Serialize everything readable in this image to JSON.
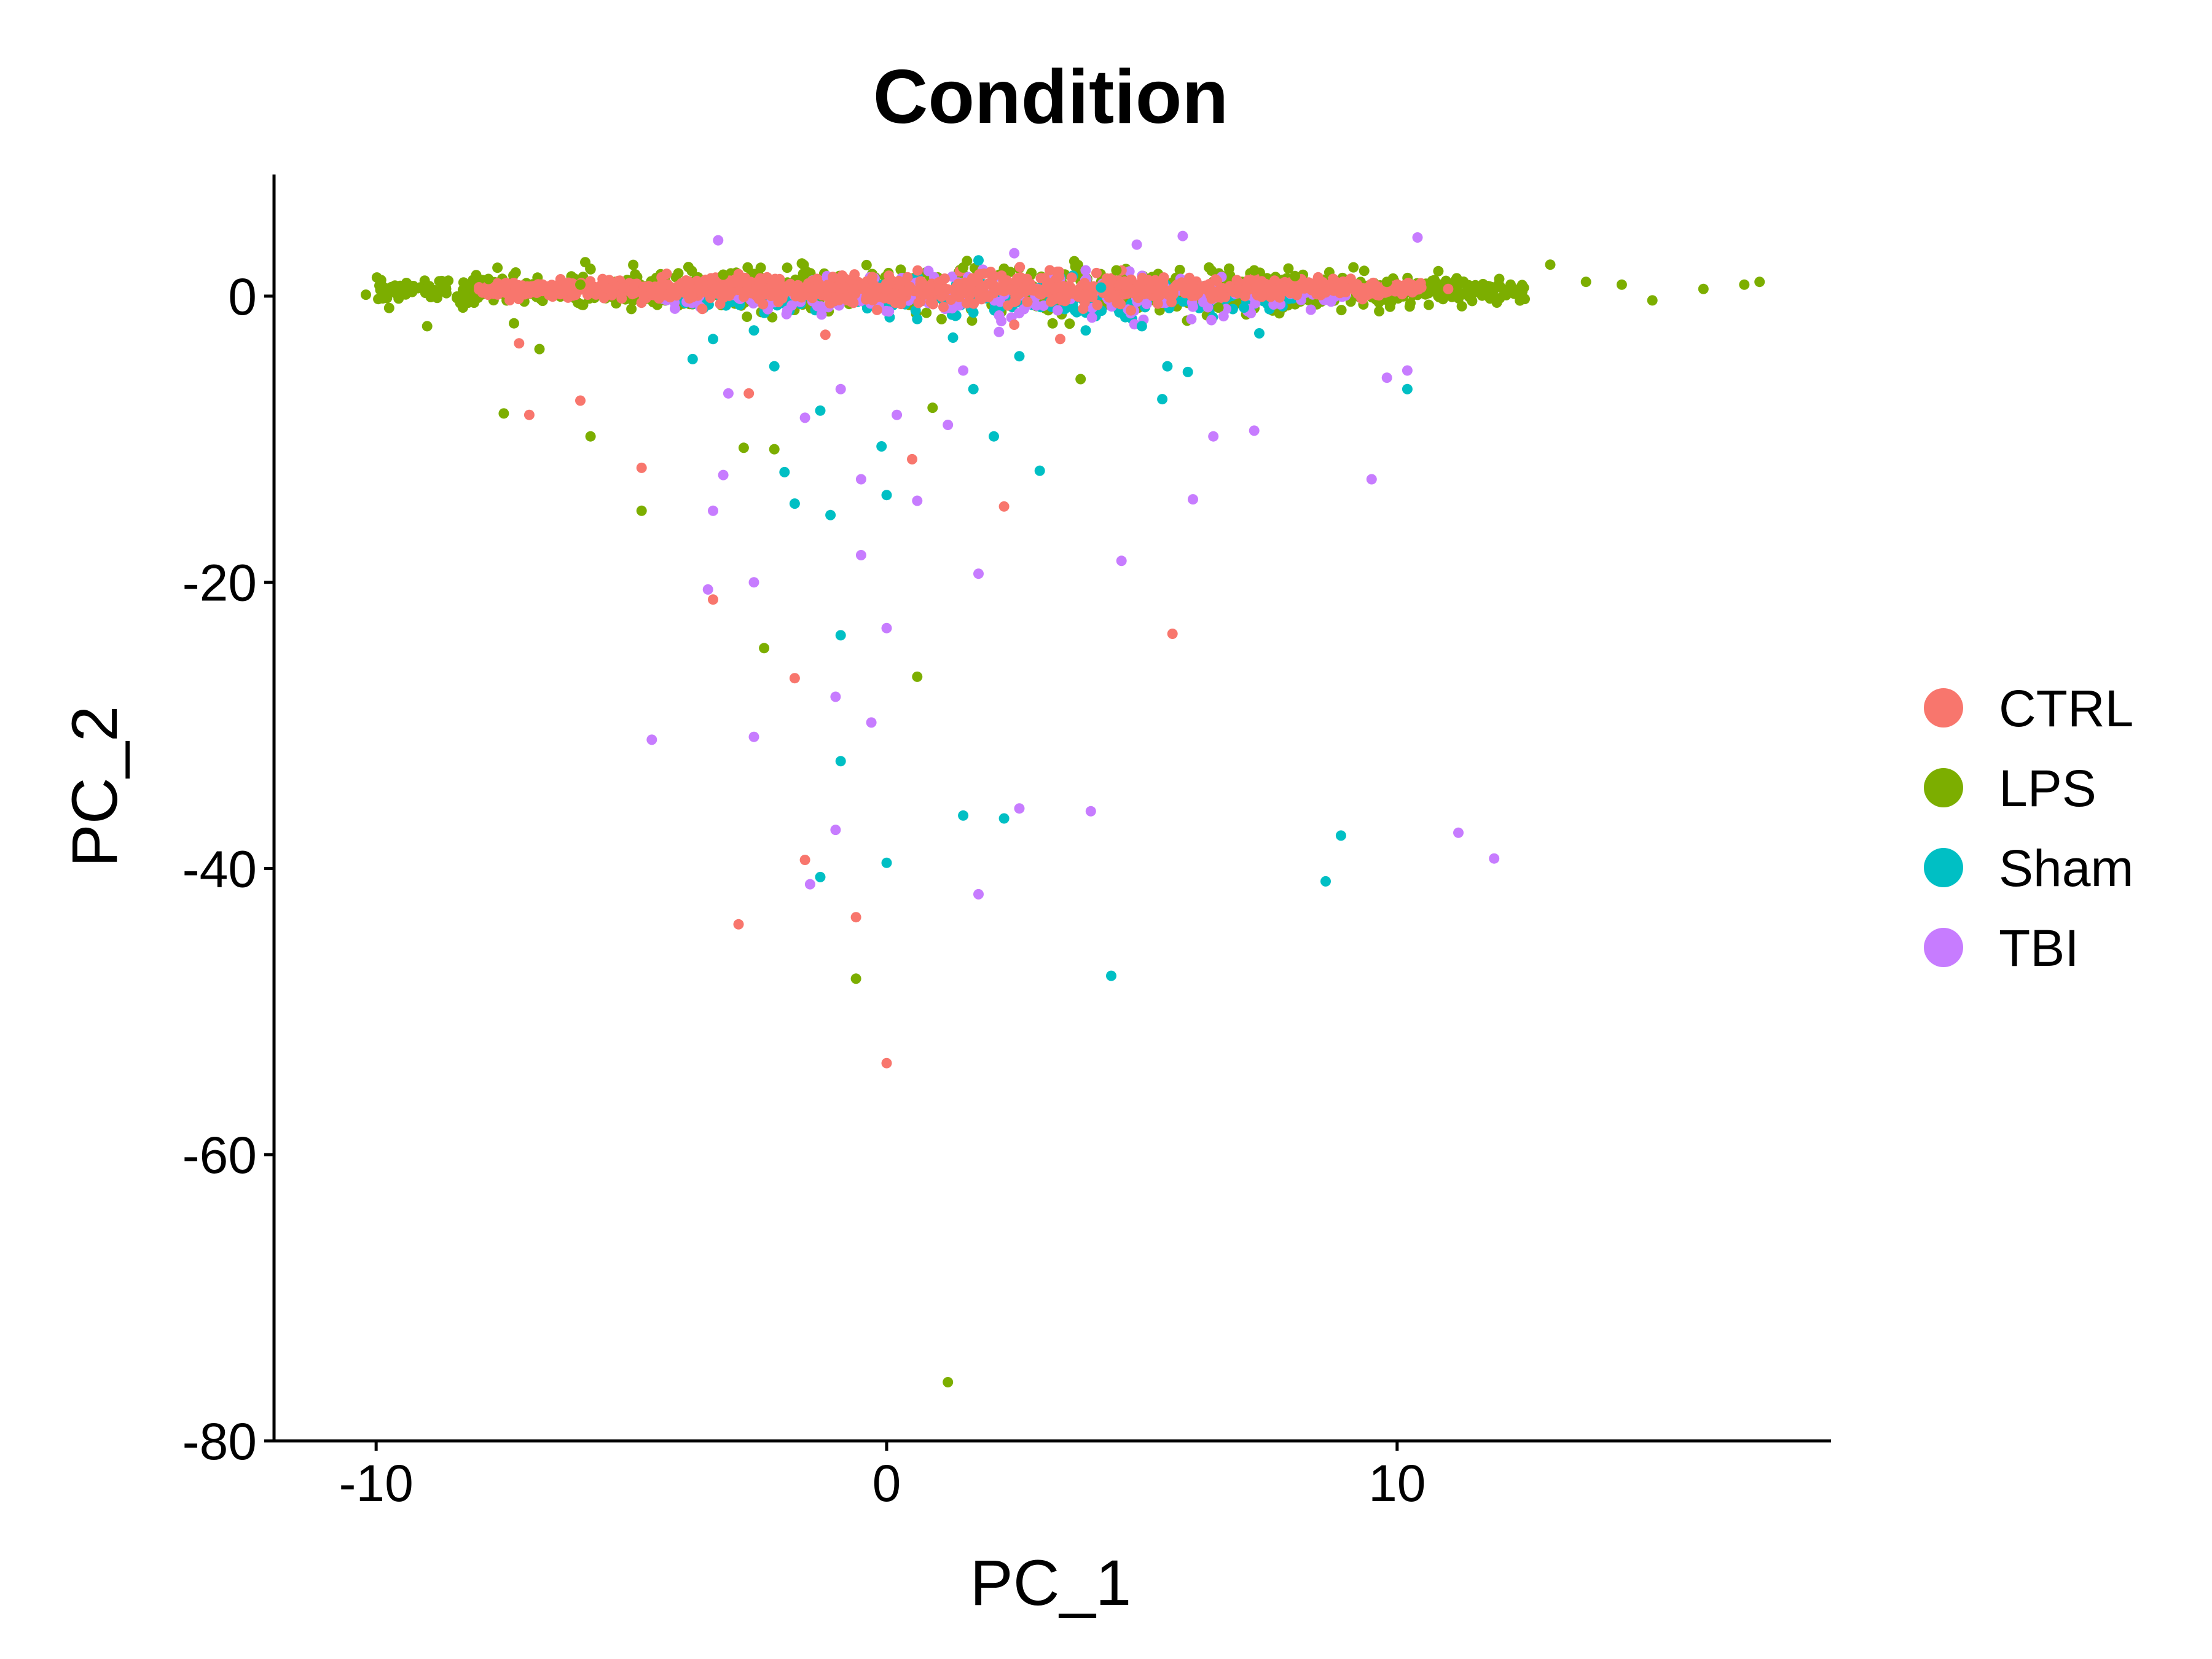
{
  "chart_data": {
    "type": "scatter",
    "title": "Condition",
    "xlabel": "PC_1",
    "ylabel": "PC_2",
    "xlim": [
      -12,
      18.5
    ],
    "ylim": [
      -80,
      8.5
    ],
    "x_ticks": [
      -10,
      0,
      10
    ],
    "y_ticks": [
      0,
      -20,
      -40,
      -60,
      -80
    ],
    "x_tick_labels": [
      "-10",
      "0",
      "10"
    ],
    "y_tick_labels": [
      "0",
      "-20",
      "-40",
      "-60",
      "-80"
    ],
    "grid": false,
    "legend_position": "right",
    "series": [
      {
        "name": "CTRL",
        "color": "#F8766D",
        "points": [
          [
            -7.2,
            -3.3
          ],
          [
            -7.0,
            -8.3
          ],
          [
            -6.0,
            -7.3
          ],
          [
            -4.8,
            -12.0
          ],
          [
            -3.4,
            -21.2
          ],
          [
            -2.7,
            -6.8
          ],
          [
            -1.8,
            -26.7
          ],
          [
            -1.6,
            -39.4
          ],
          [
            -2.9,
            -43.9
          ],
          [
            -0.6,
            -43.4
          ],
          [
            0.0,
            -53.6
          ],
          [
            0.5,
            -11.4
          ],
          [
            2.3,
            -14.7
          ],
          [
            5.6,
            -23.6
          ],
          [
            2.5,
            -2.0
          ],
          [
            3.4,
            -3.0
          ],
          [
            -1.2,
            -2.7
          ],
          [
            11.0,
            0.5
          ],
          [
            8.6,
            0.3
          ],
          [
            9.5,
            0.2
          ]
        ]
      },
      {
        "name": "LPS",
        "color": "#7CAE00",
        "points": [
          [
            -10.2,
            0.1
          ],
          [
            -9.8,
            0.4
          ],
          [
            -9.4,
            0.9
          ],
          [
            -9.0,
            -2.1
          ],
          [
            -8.8,
            0.2
          ],
          [
            -8.3,
            -0.8
          ],
          [
            -7.8,
            1.2
          ],
          [
            -7.5,
            -8.2
          ],
          [
            -7.3,
            -1.9
          ],
          [
            -6.8,
            -3.7
          ],
          [
            -5.8,
            -9.8
          ],
          [
            -4.8,
            -15.0
          ],
          [
            -2.8,
            -10.6
          ],
          [
            -2.4,
            -24.6
          ],
          [
            -2.2,
            -10.7
          ],
          [
            0.6,
            -26.6
          ],
          [
            0.9,
            -7.8
          ],
          [
            -0.6,
            -47.7
          ],
          [
            1.2,
            -75.9
          ],
          [
            3.8,
            -5.8
          ],
          [
            12.0,
            1.2
          ],
          [
            13.0,
            2.2
          ],
          [
            13.7,
            1.0
          ],
          [
            14.4,
            0.8
          ],
          [
            15.0,
            -0.3
          ],
          [
            16.0,
            0.5
          ],
          [
            16.8,
            0.8
          ],
          [
            17.1,
            1.0
          ],
          [
            12.5,
            -0.2
          ],
          [
            11.6,
            0.4
          ],
          [
            10.8,
            0.6
          ],
          [
            9.8,
            1.0
          ],
          [
            -6.0,
            0.8
          ],
          [
            -5.0,
            -0.9
          ],
          [
            6.5,
            -0.8
          ],
          [
            8.0,
            1.4
          ],
          [
            7.2,
            1.8
          ],
          [
            -3.2,
            1.5
          ],
          [
            1.5,
            2.0
          ],
          [
            4.5,
            1.8
          ]
        ]
      },
      {
        "name": "Sham",
        "color": "#00BFC4",
        "points": [
          [
            -3.8,
            -4.4
          ],
          [
            -3.4,
            -3.0
          ],
          [
            -2.2,
            -4.9
          ],
          [
            -2.0,
            -12.3
          ],
          [
            -1.8,
            -14.5
          ],
          [
            -1.1,
            -15.3
          ],
          [
            -1.3,
            -8.0
          ],
          [
            -0.9,
            -23.7
          ],
          [
            -0.9,
            -32.5
          ],
          [
            -1.3,
            -40.6
          ],
          [
            -0.1,
            -10.5
          ],
          [
            0.0,
            -13.9
          ],
          [
            0.0,
            -39.6
          ],
          [
            1.5,
            -36.3
          ],
          [
            2.3,
            -36.5
          ],
          [
            1.7,
            -6.5
          ],
          [
            2.1,
            -9.8
          ],
          [
            3.0,
            -12.2
          ],
          [
            2.6,
            -4.2
          ],
          [
            1.3,
            -2.9
          ],
          [
            4.4,
            -47.5
          ],
          [
            5.5,
            -4.9
          ],
          [
            5.4,
            -7.2
          ],
          [
            5.9,
            -5.3
          ],
          [
            8.6,
            -40.9
          ],
          [
            8.9,
            -37.7
          ],
          [
            10.2,
            -6.5
          ],
          [
            7.3,
            -2.6
          ],
          [
            7.0,
            -0.8
          ],
          [
            1.8,
            2.5
          ],
          [
            3.9,
            -2.4
          ],
          [
            -2.6,
            -2.4
          ],
          [
            0.6,
            -1.6
          ],
          [
            5.0,
            -2.1
          ],
          [
            4.2,
            0.6
          ]
        ]
      },
      {
        "name": "TBI",
        "color": "#C77CFF",
        "points": [
          [
            -3.3,
            3.9
          ],
          [
            -3.1,
            -6.8
          ],
          [
            -3.2,
            -12.5
          ],
          [
            -3.4,
            -15.0
          ],
          [
            -3.5,
            -20.5
          ],
          [
            -2.6,
            -20.0
          ],
          [
            -2.6,
            -30.8
          ],
          [
            -4.6,
            -31.0
          ],
          [
            -1.6,
            -8.5
          ],
          [
            -1.0,
            -28.0
          ],
          [
            -1.0,
            -37.3
          ],
          [
            -1.5,
            -41.1
          ],
          [
            -0.5,
            -18.1
          ],
          [
            0.0,
            -23.2
          ],
          [
            -0.3,
            -29.8
          ],
          [
            1.8,
            -19.4
          ],
          [
            1.8,
            -41.8
          ],
          [
            2.6,
            -35.8
          ],
          [
            4.0,
            -36.0
          ],
          [
            4.6,
            -18.5
          ],
          [
            6.0,
            -14.2
          ],
          [
            6.4,
            -9.8
          ],
          [
            7.2,
            -9.4
          ],
          [
            9.5,
            -12.8
          ],
          [
            11.2,
            -37.5
          ],
          [
            11.9,
            -39.3
          ],
          [
            9.8,
            -5.7
          ],
          [
            10.2,
            -5.2
          ],
          [
            10.4,
            4.1
          ],
          [
            5.8,
            4.2
          ],
          [
            4.9,
            3.6
          ],
          [
            2.5,
            3.0
          ],
          [
            0.2,
            -8.3
          ],
          [
            1.2,
            -9.0
          ],
          [
            1.5,
            -5.2
          ],
          [
            -0.9,
            -6.5
          ],
          [
            -0.5,
            -12.8
          ],
          [
            0.6,
            -14.3
          ],
          [
            2.2,
            -2.5
          ],
          [
            6.6,
            -1.4
          ]
        ]
      }
    ],
    "dense_band": [
      {
        "name": "LPS",
        "color": "#7CAE00",
        "x_range": [
          -10.0,
          12.5
        ],
        "y_center": 0.4,
        "y_spread": 1.5,
        "count": 900
      },
      {
        "name": "Sham",
        "color": "#00BFC4",
        "x_range": [
          -4.0,
          8.0
        ],
        "y_center": -0.2,
        "y_spread": 1.3,
        "count": 250
      },
      {
        "name": "TBI",
        "color": "#C77CFF",
        "x_range": [
          -4.5,
          9.0
        ],
        "y_center": 0.0,
        "y_spread": 1.5,
        "count": 260
      },
      {
        "name": "CTRL",
        "color": "#F8766D",
        "x_range": [
          -8.0,
          10.5
        ],
        "y_center": 0.5,
        "y_spread": 0.9,
        "count": 1100
      }
    ]
  }
}
